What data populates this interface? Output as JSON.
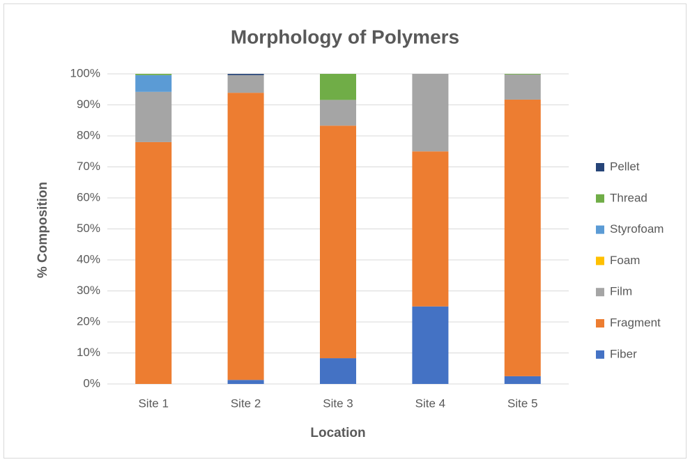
{
  "chart_data": {
    "type": "stacked_bar",
    "title": "Morphology of Polymers",
    "x_label": "Location",
    "y_label": "% Composition",
    "categories": [
      "Site 1",
      "Site 2",
      "Site 3",
      "Site 4",
      "Site 5"
    ],
    "series": [
      {
        "name": "Fiber",
        "color": "#4472c4",
        "values": [
          0,
          1.3,
          8.3,
          25,
          2.5
        ]
      },
      {
        "name": "Fragment",
        "color": "#ed7d31",
        "values": [
          78,
          92.6,
          75,
          50,
          89.2
        ]
      },
      {
        "name": "Film",
        "color": "#a5a5a5",
        "values": [
          16.2,
          5.7,
          8.3,
          25,
          8.1
        ]
      },
      {
        "name": "Foam",
        "color": "#ffc000",
        "values": [
          0,
          0,
          0,
          0,
          0
        ]
      },
      {
        "name": "Styrofoam",
        "color": "#5b9bd5",
        "values": [
          5.4,
          0,
          0,
          0,
          0
        ]
      },
      {
        "name": "Thread",
        "color": "#70ad47",
        "values": [
          0.4,
          0,
          8.4,
          0,
          0.2
        ]
      },
      {
        "name": "Pellet",
        "color": "#264478",
        "values": [
          0,
          0.4,
          0,
          0,
          0
        ]
      }
    ],
    "ylim": [
      0,
      100
    ],
    "yticks": [
      {
        "value": 0,
        "label": "0%"
      },
      {
        "value": 10,
        "label": "10%"
      },
      {
        "value": 20,
        "label": "20%"
      },
      {
        "value": 30,
        "label": "30%"
      },
      {
        "value": 40,
        "label": "40%"
      },
      {
        "value": 50,
        "label": "50%"
      },
      {
        "value": 60,
        "label": "60%"
      },
      {
        "value": 70,
        "label": "70%"
      },
      {
        "value": 80,
        "label": "80%"
      },
      {
        "value": 90,
        "label": "90%"
      },
      {
        "value": 100,
        "label": "100%"
      }
    ],
    "grid": true,
    "legend": "right"
  }
}
